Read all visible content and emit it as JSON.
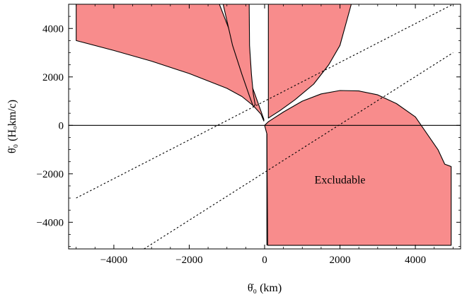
{
  "chart_data": {
    "type": "area",
    "title": "",
    "xlabel": "θ̇₀ (km)",
    "ylabel": "θ̈₀ (Hₒkm/c)",
    "xlim": [
      -5200,
      5200
    ],
    "ylim": [
      -5100,
      5000
    ],
    "xticks": [
      -4000,
      -2000,
      0,
      2000,
      4000
    ],
    "yticks": [
      -4000,
      -2000,
      0,
      2000,
      4000
    ],
    "xtick_labels": [
      "−4000",
      "−2000",
      "0",
      "2000",
      "4000"
    ],
    "ytick_labels": [
      "−4000",
      "−2000",
      "0",
      "2000",
      "4000"
    ],
    "grid": false,
    "fill_color": "#f88c8c",
    "annotations": [
      {
        "text": "Excludable",
        "x": 2000,
        "y": -2400
      }
    ],
    "regions": [
      {
        "id": "region-upper-left",
        "boundary": [
          [
            -5000,
            5000
          ],
          [
            -5000,
            3500
          ],
          [
            -4000,
            3090
          ],
          [
            -3000,
            2650
          ],
          [
            -2000,
            2140
          ],
          [
            -1000,
            1530
          ],
          [
            -600,
            1190
          ],
          [
            -300,
            810
          ],
          [
            -100,
            470
          ],
          [
            -20,
            180
          ],
          [
            -20,
            250
          ],
          [
            -150,
            820
          ],
          [
            -400,
            1900
          ],
          [
            -700,
            3000
          ],
          [
            -1000,
            4200
          ],
          [
            -1200,
            5000
          ]
        ]
      },
      {
        "id": "region-upper-narrow",
        "boundary": [
          [
            -1100,
            5000
          ],
          [
            -850,
            3300
          ],
          [
            -600,
            2100
          ],
          [
            -400,
            1200
          ],
          [
            -300,
            780
          ],
          [
            -250,
            850
          ],
          [
            -300,
            1300
          ],
          [
            -350,
            2100
          ],
          [
            -400,
            3300
          ],
          [
            -410,
            5000
          ]
        ]
      },
      {
        "id": "region-upper-right",
        "boundary": [
          [
            100,
            5000
          ],
          [
            100,
            300
          ],
          [
            400,
            600
          ],
          [
            800,
            1050
          ],
          [
            1300,
            1700
          ],
          [
            1700,
            2500
          ],
          [
            2000,
            3300
          ],
          [
            2300,
            5000
          ]
        ]
      },
      {
        "id": "region-lower-right",
        "boundary": [
          [
            0,
            0
          ],
          [
            60,
            -350
          ],
          [
            80,
            -4950
          ],
          [
            4950,
            -4950
          ],
          [
            4950,
            -1700
          ],
          [
            4780,
            -1600
          ],
          [
            4600,
            -1000
          ],
          [
            4000,
            350
          ],
          [
            3500,
            900
          ],
          [
            3000,
            1260
          ],
          [
            2500,
            1420
          ],
          [
            2000,
            1440
          ],
          [
            1500,
            1300
          ],
          [
            1000,
            1000
          ],
          [
            500,
            550
          ],
          [
            100,
            150
          ]
        ]
      }
    ],
    "dotted_lines": [
      {
        "id": "dotted-line-upper",
        "points": [
          [
            -5000,
            -3000
          ],
          [
            5000,
            5000
          ]
        ]
      },
      {
        "id": "dotted-line-lower",
        "points": [
          [
            -3200,
            -5100
          ],
          [
            5000,
            3000
          ]
        ]
      }
    ],
    "horizontal_line": {
      "y": 0
    },
    "vertical_line": {
      "x": 60,
      "from_y": -4950,
      "to_y": -350
    }
  }
}
